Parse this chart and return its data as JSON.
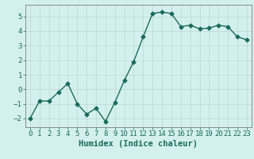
{
  "x": [
    0,
    1,
    2,
    3,
    4,
    5,
    6,
    7,
    8,
    9,
    10,
    11,
    12,
    13,
    14,
    15,
    16,
    17,
    18,
    19,
    20,
    21,
    22,
    23
  ],
  "y": [
    -2.0,
    -0.8,
    -0.8,
    -0.2,
    0.4,
    -1.0,
    -1.7,
    -1.3,
    -2.2,
    -0.9,
    0.6,
    1.9,
    3.6,
    5.2,
    5.3,
    5.2,
    4.3,
    4.4,
    4.15,
    4.2,
    4.4,
    4.3,
    3.6,
    3.4
  ],
  "line_color": "#1a6b5a",
  "marker": "D",
  "marker_size": 2.5,
  "bg_color": "#d4f0ee",
  "grid_color": "#b8d8d4",
  "axis_color": "#666666",
  "xlabel": "Humidex (Indice chaleur)",
  "ylim": [
    -2.6,
    5.8
  ],
  "yticks": [
    -2,
    -1,
    0,
    1,
    2,
    3,
    4,
    5
  ],
  "xlim": [
    -0.5,
    23.5
  ],
  "xticks": [
    0,
    1,
    2,
    3,
    4,
    5,
    6,
    7,
    8,
    9,
    10,
    11,
    12,
    13,
    14,
    15,
    16,
    17,
    18,
    19,
    20,
    21,
    22,
    23
  ],
  "xlabel_fontsize": 7.5,
  "tick_fontsize": 6.5,
  "line_width": 1.0
}
